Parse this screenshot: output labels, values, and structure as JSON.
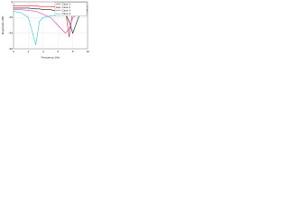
{
  "chart_data": {
    "type": "line",
    "x_label": "Frequency (Hz)",
    "y_label": "Magnitude (dB)",
    "x": [
      0,
      1,
      2,
      3,
      3.5,
      4,
      5,
      6,
      7,
      7.5,
      8,
      9,
      10
    ],
    "series": [
      {
        "name": "Case 1",
        "color": "#e8202a",
        "values": [
          -5,
          -5,
          -5,
          -5,
          -6,
          -6,
          -6,
          -7,
          -9,
          -45,
          -10,
          -7,
          -6
        ]
      },
      {
        "name": "Case 2",
        "color": "#111111",
        "values": [
          -8,
          -8,
          -8,
          -9,
          -9,
          -10,
          -10,
          -12,
          -15,
          -25,
          -40,
          -14,
          -10
        ]
      },
      {
        "name": "Case 3",
        "color": "#e040c0",
        "values": [
          -10,
          -10,
          -11,
          -12,
          -14,
          -16,
          -20,
          -30,
          -40,
          -35,
          -20,
          -15,
          -12
        ]
      },
      {
        "name": "Case 4",
        "color": "#30c8d8",
        "values": [
          -12,
          -14,
          -20,
          -55,
          -25,
          -20,
          -18,
          -17,
          -16,
          -16,
          -15,
          -15,
          -14
        ]
      }
    ],
    "xlim": [
      0,
      10
    ],
    "xticks": [
      0,
      2,
      4,
      6,
      8,
      10
    ],
    "ylim": [
      -60,
      0
    ],
    "yticks": [
      -60,
      -40,
      -20,
      0
    ],
    "grid": true,
    "legend": "top-right"
  }
}
